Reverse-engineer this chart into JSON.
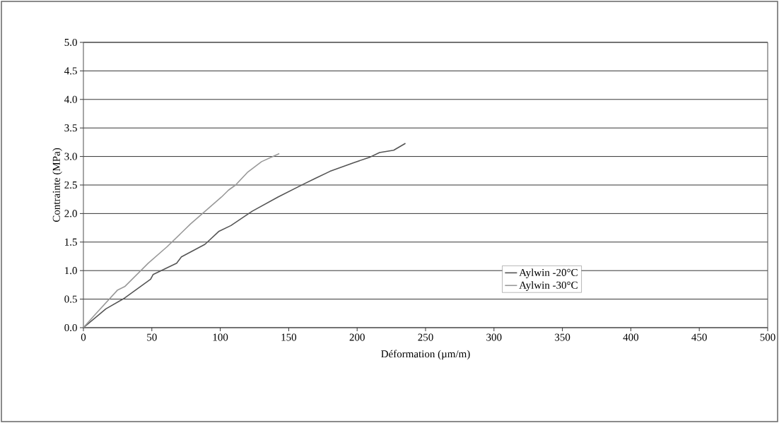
{
  "chart_data": {
    "type": "line",
    "xlabel": "Déformation (µm/m)",
    "ylabel": "Contrainte (MPa)",
    "xlim": [
      0,
      500
    ],
    "xticks": [
      0,
      50,
      100,
      150,
      200,
      250,
      300,
      350,
      400,
      450,
      500
    ],
    "ylim": [
      0,
      5
    ],
    "yticks": [
      {
        "value": 0,
        "label": "0.0"
      },
      {
        "value": 0.5,
        "label": "0.5"
      },
      {
        "value": 1,
        "label": "1.0"
      },
      {
        "value": 1.5,
        "label": "1.5"
      },
      {
        "value": 2,
        "label": "2.0"
      },
      {
        "value": 2.5,
        "label": "2.5"
      },
      {
        "value": 3,
        "label": "3.0"
      },
      {
        "value": 3.5,
        "label": "3.5"
      },
      {
        "value": 4,
        "label": "4.0"
      },
      {
        "value": 4.5,
        "label": "4.5"
      },
      {
        "value": 5,
        "label": "5.0"
      }
    ],
    "grid": "y",
    "legend": "bottom right",
    "series": [
      {
        "name": "Aylwin -20°C",
        "color": "#555555",
        "x": [
          0,
          16.4,
          30.2,
          49.1,
          50.9,
          68.1,
          71.6,
          88.8,
          99.1,
          107.8,
          123.3,
          142.2,
          161.2,
          169.8,
          180.2,
          197.4,
          209.5,
          216.4,
          226.7,
          235.3
        ],
        "values": [
          0,
          0.33,
          0.52,
          0.85,
          0.93,
          1.13,
          1.24,
          1.46,
          1.69,
          1.79,
          2.04,
          2.29,
          2.52,
          2.62,
          2.74,
          2.89,
          2.99,
          3.07,
          3.11,
          3.23
        ]
      },
      {
        "name": "Aylwin -30°C",
        "color": "#999999",
        "x": [
          0,
          7.8,
          25,
          30.2,
          47.4,
          61.2,
          78.4,
          87,
          100.9,
          106,
          111.2,
          119.8,
          130.2,
          143.1
        ],
        "values": [
          0,
          0.21,
          0.66,
          0.72,
          1.13,
          1.42,
          1.82,
          2.0,
          2.29,
          2.41,
          2.5,
          2.72,
          2.91,
          3.05
        ]
      }
    ]
  }
}
